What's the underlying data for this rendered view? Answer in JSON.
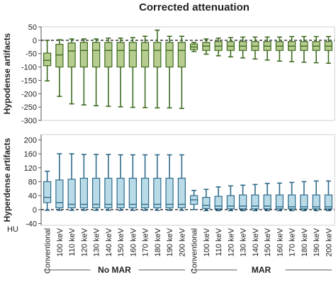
{
  "chart_data": {
    "type": "boxplot",
    "title": "Corrected attenuation",
    "unit_label": "HU",
    "categories": [
      "Conventional",
      "100 keV",
      "110 keV",
      "120 keV",
      "130 keV",
      "140 keV",
      "150 keV",
      "160 keV",
      "170 keV",
      "180 keV",
      "190 keV",
      "200 keV"
    ],
    "groups": [
      "No MAR",
      "MAR"
    ],
    "colors": {
      "hypodense": "#3d6b1f",
      "hypodense_fill": "#b7cc8f",
      "hyperdense": "#2f6b8a",
      "hyperdense_fill": "#b9dbe8"
    },
    "panels": [
      {
        "ylabel": "Hypodense artifacts",
        "ylim": [
          -300,
          50
        ],
        "yticks": [
          50,
          0,
          -50,
          -100,
          -150,
          -200,
          -250,
          -300
        ],
        "reference_line": 0,
        "series": [
          {
            "name": "No MAR",
            "boxes": [
              {
                "min": -152,
                "q1": -95,
                "median": -75,
                "q3": -48,
                "max": 0
              },
              {
                "min": -210,
                "q1": -100,
                "median": -55,
                "q3": -15,
                "max": 2
              },
              {
                "min": -238,
                "q1": -100,
                "median": -40,
                "q3": -10,
                "max": 5
              },
              {
                "min": -242,
                "q1": -100,
                "median": -38,
                "q3": -8,
                "max": 5
              },
              {
                "min": -245,
                "q1": -100,
                "median": -38,
                "q3": -8,
                "max": 5
              },
              {
                "min": -247,
                "q1": -100,
                "median": -38,
                "q3": -8,
                "max": 8
              },
              {
                "min": -249,
                "q1": -100,
                "median": -38,
                "q3": -8,
                "max": 8
              },
              {
                "min": -251,
                "q1": -100,
                "median": -38,
                "q3": -8,
                "max": 10
              },
              {
                "min": -252,
                "q1": -100,
                "median": -38,
                "q3": -8,
                "max": 15
              },
              {
                "min": -253,
                "q1": -100,
                "median": -38,
                "q3": -8,
                "max": 38
              },
              {
                "min": -253,
                "q1": -100,
                "median": -38,
                "q3": -8,
                "max": 15
              },
              {
                "min": -255,
                "q1": -100,
                "median": -38,
                "q3": -8,
                "max": 15
              }
            ]
          },
          {
            "name": "MAR",
            "boxes": [
              {
                "min": -42,
                "q1": -35,
                "median": -25,
                "q3": -14,
                "max": -8
              },
              {
                "min": -52,
                "q1": -38,
                "median": -22,
                "q3": -8,
                "max": 5
              },
              {
                "min": -58,
                "q1": -38,
                "median": -22,
                "q3": -5,
                "max": 8
              },
              {
                "min": -62,
                "q1": -38,
                "median": -22,
                "q3": -5,
                "max": 10
              },
              {
                "min": -66,
                "q1": -38,
                "median": -22,
                "q3": -5,
                "max": 12
              },
              {
                "min": -70,
                "q1": -38,
                "median": -22,
                "q3": -5,
                "max": 12
              },
              {
                "min": -74,
                "q1": -38,
                "median": -22,
                "q3": -5,
                "max": 12
              },
              {
                "min": -78,
                "q1": -38,
                "median": -22,
                "q3": -5,
                "max": 12
              },
              {
                "min": -80,
                "q1": -38,
                "median": -22,
                "q3": -5,
                "max": 14
              },
              {
                "min": -82,
                "q1": -38,
                "median": -22,
                "q3": -5,
                "max": 14
              },
              {
                "min": -84,
                "q1": -38,
                "median": -22,
                "q3": -5,
                "max": 14
              },
              {
                "min": -86,
                "q1": -38,
                "median": -22,
                "q3": -5,
                "max": 14
              }
            ]
          }
        ]
      },
      {
        "ylabel": "Hyperdense artifacts",
        "ylim": [
          -45,
          215
        ],
        "yticks": [
          200,
          160,
          120,
          80,
          40,
          0,
          -40
        ],
        "reference_line": 0,
        "series": [
          {
            "name": "No MAR",
            "boxes": [
              {
                "min": -2,
                "q1": 20,
                "median": 35,
                "q3": 80,
                "max": 110
              },
              {
                "min": -2,
                "q1": 5,
                "median": 20,
                "q3": 85,
                "max": 160
              },
              {
                "min": -2,
                "q1": 5,
                "median": 15,
                "q3": 87,
                "max": 160
              },
              {
                "min": -2,
                "q1": 5,
                "median": 15,
                "q3": 90,
                "max": 158
              },
              {
                "min": -2,
                "q1": 5,
                "median": 15,
                "q3": 90,
                "max": 158
              },
              {
                "min": -2,
                "q1": 5,
                "median": 15,
                "q3": 90,
                "max": 158
              },
              {
                "min": -2,
                "q1": 5,
                "median": 15,
                "q3": 90,
                "max": 157
              },
              {
                "min": -2,
                "q1": 5,
                "median": 15,
                "q3": 90,
                "max": 157
              },
              {
                "min": -2,
                "q1": 5,
                "median": 15,
                "q3": 90,
                "max": 157
              },
              {
                "min": -2,
                "q1": 5,
                "median": 15,
                "q3": 90,
                "max": 157
              },
              {
                "min": -2,
                "q1": 5,
                "median": 15,
                "q3": 90,
                "max": 157
              },
              {
                "min": -2,
                "q1": 5,
                "median": 15,
                "q3": 90,
                "max": 157
              }
            ]
          },
          {
            "name": "MAR",
            "boxes": [
              {
                "min": 0,
                "q1": 15,
                "median": 28,
                "q3": 40,
                "max": 55
              },
              {
                "min": -3,
                "q1": 3,
                "median": 12,
                "q3": 35,
                "max": 58
              },
              {
                "min": -3,
                "q1": 2,
                "median": 10,
                "q3": 38,
                "max": 65
              },
              {
                "min": -3,
                "q1": 2,
                "median": 10,
                "q3": 40,
                "max": 68
              },
              {
                "min": -3,
                "q1": 2,
                "median": 10,
                "q3": 42,
                "max": 70
              },
              {
                "min": -3,
                "q1": 2,
                "median": 10,
                "q3": 42,
                "max": 72
              },
              {
                "min": -3,
                "q1": 2,
                "median": 10,
                "q3": 42,
                "max": 75
              },
              {
                "min": -3,
                "q1": 2,
                "median": 8,
                "q3": 42,
                "max": 76
              },
              {
                "min": -3,
                "q1": 2,
                "median": 8,
                "q3": 42,
                "max": 78
              },
              {
                "min": -3,
                "q1": 2,
                "median": 8,
                "q3": 42,
                "max": 80
              },
              {
                "min": -3,
                "q1": 2,
                "median": 8,
                "q3": 42,
                "max": 82
              },
              {
                "min": -3,
                "q1": 2,
                "median": 8,
                "q3": 42,
                "max": 82
              }
            ]
          }
        ]
      }
    ]
  }
}
